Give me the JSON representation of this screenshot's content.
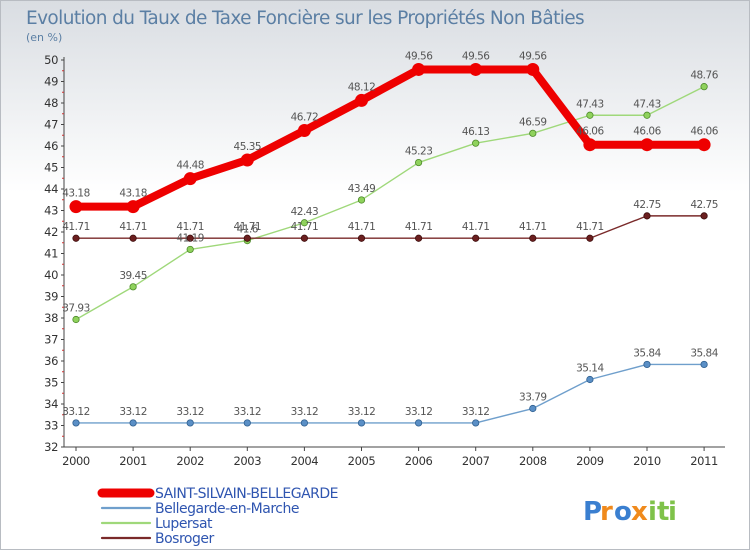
{
  "chart_data": {
    "type": "line",
    "title": "Evolution du Taux de Taxe Foncière sur les Propriétés Non Bâties",
    "subtitle": "(en %)",
    "x": [
      "2000",
      "2001",
      "2002",
      "2003",
      "2004",
      "2005",
      "2006",
      "2007",
      "2008",
      "2009",
      "2010",
      "2011"
    ],
    "ylim": [
      32,
      50
    ],
    "yticks": [
      "32",
      "33",
      "34",
      "35",
      "36",
      "37",
      "38",
      "39",
      "40",
      "41",
      "42",
      "43",
      "44",
      "45",
      "46",
      "47",
      "48",
      "49",
      "50"
    ],
    "grid": false,
    "legend_position": "bottom-left",
    "series": [
      {
        "name": "SAINT-SILVAIN-BELLEGARDE",
        "color": "#ee0000",
        "values": [
          43.18,
          43.18,
          44.48,
          45.35,
          46.72,
          48.12,
          49.56,
          49.56,
          49.56,
          46.06,
          46.06,
          46.06
        ],
        "labels": [
          "43.18",
          "43.18",
          "44.48",
          "45.35",
          "46.72",
          "48.12",
          "49.56",
          "49.56",
          "49.56",
          "46.06",
          "46.06",
          "46.06"
        ]
      },
      {
        "name": "Bellegarde-en-Marche",
        "color": "#6f9fcc",
        "values": [
          33.12,
          33.12,
          33.12,
          33.12,
          33.12,
          33.12,
          33.12,
          33.12,
          33.79,
          35.14,
          35.84,
          35.84
        ],
        "labels": [
          "33.12",
          "33.12",
          "33.12",
          "33.12",
          "33.12",
          "33.12",
          "33.12",
          "33.12",
          "33.79",
          "35.14",
          "35.84",
          "35.84"
        ]
      },
      {
        "name": "Lupersat",
        "color": "#9fd87a",
        "values": [
          37.93,
          39.45,
          41.19,
          41.6,
          42.43,
          43.49,
          45.23,
          46.13,
          46.59,
          47.43,
          47.43,
          48.76
        ],
        "labels": [
          "37.93",
          "39.45",
          "41.19",
          "41.6",
          "42.43",
          "43.49",
          "45.23",
          "46.13",
          "46.59",
          "47.43",
          "47.43",
          "48.76"
        ]
      },
      {
        "name": "Bosroger",
        "color": "#7a2a2a",
        "values": [
          41.71,
          41.71,
          41.71,
          41.71,
          41.71,
          41.71,
          41.71,
          41.71,
          41.71,
          41.71,
          42.75,
          42.75
        ],
        "labels": [
          "41.71",
          "41.71",
          "41.71",
          "41.71",
          "41.71",
          "41.71",
          "41.71",
          "41.71",
          "41.71",
          "41.71",
          "42.75",
          "42.75"
        ]
      }
    ]
  },
  "legend": {
    "items": [
      {
        "label": "SAINT-SILVAIN-BELLEGARDE",
        "color": "#ee0000"
      },
      {
        "label": "Bellegarde-en-Marche",
        "color": "#6f9fcc"
      },
      {
        "label": "Lupersat",
        "color": "#9fd87a"
      },
      {
        "label": "Bosroger",
        "color": "#7a2a2a"
      }
    ]
  },
  "logo": {
    "text": "Proxiti",
    "colors": [
      "#3a7fd0",
      "#f08a1c",
      "#3a7fd0",
      "#f08a1c",
      "#7fc24a",
      "#7fc24a",
      "#7fc24a"
    ]
  }
}
